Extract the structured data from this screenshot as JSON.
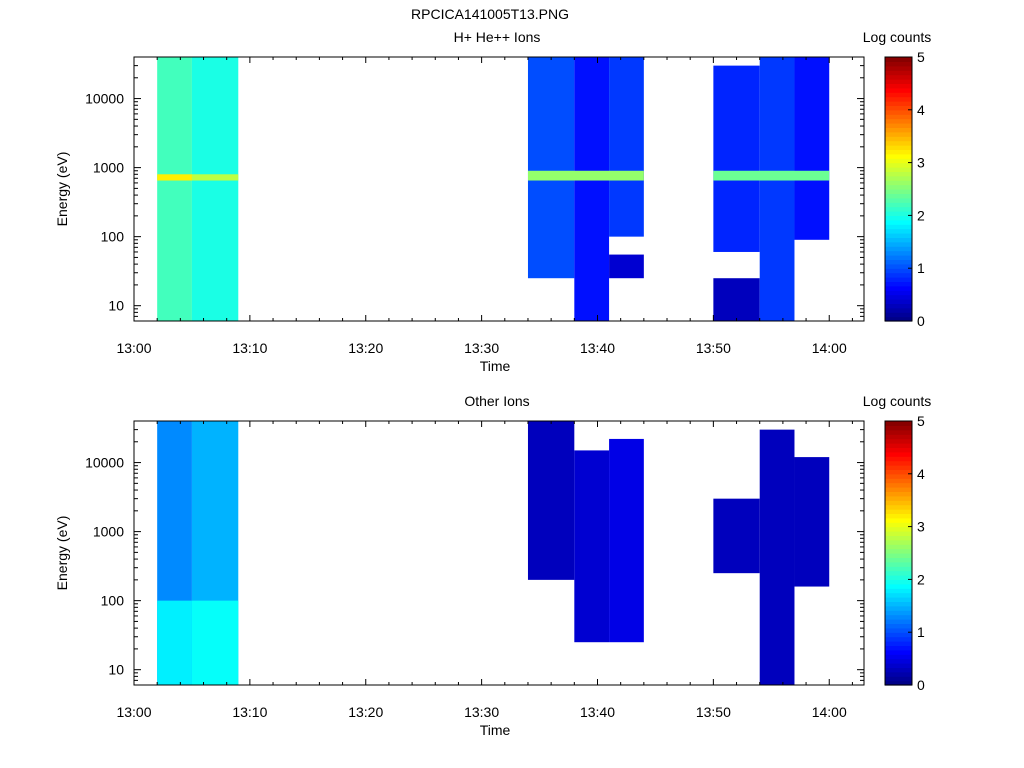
{
  "figure_title": "RPCICA141005T13.PNG",
  "colorbar": {
    "title": "Log counts",
    "ticks": [
      "0",
      "1",
      "2",
      "3",
      "4",
      "5"
    ],
    "range": [
      0,
      5
    ]
  },
  "chart_data": [
    {
      "type": "heatmap",
      "title": "H+ He++ Ions",
      "xlabel": "Time",
      "ylabel": "Energy (eV)",
      "x_ticks": [
        "13:00",
        "13:10",
        "13:20",
        "13:30",
        "13:40",
        "13:50",
        "14:00"
      ],
      "x_range": [
        "13:00",
        "14:03"
      ],
      "y_scale": "log",
      "y_ticks": [
        "10",
        "100",
        "1000",
        "10000"
      ],
      "y_range": [
        6,
        40000
      ],
      "colormap": "jet",
      "cells": [
        {
          "t0": "13:02",
          "t1": "13:05",
          "e0": 6,
          "e1": 40000,
          "v": 2.2
        },
        {
          "t0": "13:05",
          "t1": "13:09",
          "e0": 6,
          "e1": 40000,
          "v": 2.0
        },
        {
          "t0": "13:02",
          "t1": "13:05",
          "e0": 650,
          "e1": 800,
          "v": 3.2
        },
        {
          "t0": "13:05",
          "t1": "13:09",
          "e0": 650,
          "e1": 800,
          "v": 2.8
        },
        {
          "t0": "13:34",
          "t1": "13:38",
          "e0": 25,
          "e1": 40000,
          "v": 1.0
        },
        {
          "t0": "13:38",
          "t1": "13:41",
          "e0": 6,
          "e1": 40000,
          "v": 0.7
        },
        {
          "t0": "13:41",
          "t1": "13:44",
          "e0": 25,
          "e1": 55,
          "v": 0.4
        },
        {
          "t0": "13:41",
          "t1": "13:44",
          "e0": 100,
          "e1": 40000,
          "v": 0.9
        },
        {
          "t0": "13:34",
          "t1": "13:44",
          "e0": 650,
          "e1": 900,
          "v": 2.6
        },
        {
          "t0": "13:50",
          "t1": "13:54",
          "e0": 6,
          "e1": 25,
          "v": 0.3
        },
        {
          "t0": "13:50",
          "t1": "13:54",
          "e0": 60,
          "e1": 30000,
          "v": 0.8
        },
        {
          "t0": "13:54",
          "t1": "13:57",
          "e0": 6,
          "e1": 40000,
          "v": 0.9
        },
        {
          "t0": "13:57",
          "t1": "14:00",
          "e0": 90,
          "e1": 40000,
          "v": 0.7
        },
        {
          "t0": "13:50",
          "t1": "14:00",
          "e0": 650,
          "e1": 900,
          "v": 2.4
        }
      ]
    },
    {
      "type": "heatmap",
      "title": "Other Ions",
      "xlabel": "Time",
      "ylabel": "Energy (eV)",
      "x_ticks": [
        "13:00",
        "13:10",
        "13:20",
        "13:30",
        "13:40",
        "13:50",
        "14:00"
      ],
      "x_range": [
        "13:00",
        "14:03"
      ],
      "y_scale": "log",
      "y_ticks": [
        "10",
        "100",
        "1000",
        "10000"
      ],
      "y_range": [
        6,
        40000
      ],
      "colormap": "jet",
      "cells": [
        {
          "t0": "13:02",
          "t1": "13:05",
          "e0": 6,
          "e1": 40000,
          "v": 1.3
        },
        {
          "t0": "13:05",
          "t1": "13:09",
          "e0": 6,
          "e1": 40000,
          "v": 1.5
        },
        {
          "t0": "13:02",
          "t1": "13:05",
          "e0": 6,
          "e1": 100,
          "v": 1.8
        },
        {
          "t0": "13:05",
          "t1": "13:09",
          "e0": 6,
          "e1": 100,
          "v": 1.9
        },
        {
          "t0": "13:34",
          "t1": "13:38",
          "e0": 200,
          "e1": 40000,
          "v": 0.3
        },
        {
          "t0": "13:38",
          "t1": "13:41",
          "e0": 25,
          "e1": 15000,
          "v": 0.4
        },
        {
          "t0": "13:41",
          "t1": "13:44",
          "e0": 25,
          "e1": 22000,
          "v": 0.5
        },
        {
          "t0": "13:50",
          "t1": "13:54",
          "e0": 250,
          "e1": 3000,
          "v": 0.3
        },
        {
          "t0": "13:54",
          "t1": "13:57",
          "e0": 6,
          "e1": 30000,
          "v": 0.3
        },
        {
          "t0": "13:57",
          "t1": "14:00",
          "e0": 160,
          "e1": 12000,
          "v": 0.3
        }
      ]
    }
  ]
}
